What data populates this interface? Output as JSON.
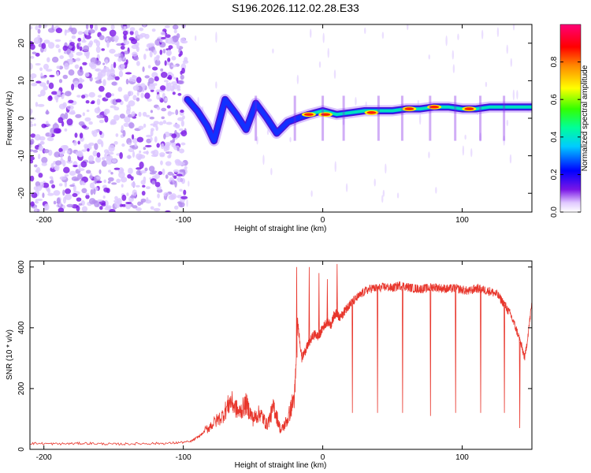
{
  "title": "S196.2026.112.02.28.E33",
  "chart_data": [
    {
      "type": "heatmap",
      "name": "spectrogram",
      "xlabel": "Height of straight line (km)",
      "ylabel": "Frequency (Hz)",
      "xlim": [
        -210,
        150
      ],
      "ylim": [
        -25,
        25
      ],
      "xticks": [
        -200,
        -100,
        0,
        100
      ],
      "yticks": [
        -20,
        -10,
        0,
        10,
        20
      ],
      "ridge": [
        {
          "x": -97,
          "y": 5
        },
        {
          "x": -90,
          "y": 2
        },
        {
          "x": -83,
          "y": -2
        },
        {
          "x": -78,
          "y": -6
        },
        {
          "x": -70,
          "y": 5
        },
        {
          "x": -62,
          "y": 1
        },
        {
          "x": -55,
          "y": -3
        },
        {
          "x": -48,
          "y": 4
        },
        {
          "x": -40,
          "y": 0
        },
        {
          "x": -33,
          "y": -4
        },
        {
          "x": -25,
          "y": -1
        },
        {
          "x": -18,
          "y": 0
        },
        {
          "x": -10,
          "y": 1
        },
        {
          "x": 0,
          "y": 2
        },
        {
          "x": 10,
          "y": 1
        },
        {
          "x": 20,
          "y": 1.5
        },
        {
          "x": 30,
          "y": 2
        },
        {
          "x": 40,
          "y": 2
        },
        {
          "x": 50,
          "y": 2
        },
        {
          "x": 60,
          "y": 2.5
        },
        {
          "x": 70,
          "y": 2.5
        },
        {
          "x": 80,
          "y": 3
        },
        {
          "x": 90,
          "y": 3
        },
        {
          "x": 100,
          "y": 2.5
        },
        {
          "x": 110,
          "y": 2.5
        },
        {
          "x": 120,
          "y": 3
        },
        {
          "x": 130,
          "y": 3
        },
        {
          "x": 140,
          "y": 3
        },
        {
          "x": 150,
          "y": 3
        }
      ],
      "noise_region": [
        -210,
        -98
      ],
      "colorbar": {
        "label": "Normalized spectral amplitude",
        "range": [
          0,
          1
        ],
        "ticks": [
          "0.0",
          "0.2",
          "0.4",
          "0.6",
          "0.8"
        ]
      }
    },
    {
      "type": "line",
      "name": "snr",
      "xlabel": "Height of straight line (km)",
      "ylabel": "SNR (10 * v/v)",
      "xlim": [
        -210,
        150
      ],
      "ylim": [
        0,
        620
      ],
      "xticks": [
        -200,
        -100,
        0,
        100
      ],
      "yticks": [
        0,
        200,
        400,
        600
      ],
      "color": "#e8362c",
      "series": [
        {
          "name": "SNR",
          "x": [
            -210,
            -190,
            -170,
            -150,
            -130,
            -110,
            -95,
            -88,
            -80,
            -72,
            -66,
            -60,
            -55,
            -50,
            -45,
            -40,
            -35,
            -30,
            -25,
            -20,
            -18,
            -15,
            -12,
            -10,
            -6,
            -3,
            0,
            3,
            6,
            8,
            10,
            12,
            15,
            18,
            20,
            25,
            30,
            35,
            40,
            45,
            50,
            55,
            60,
            65,
            70,
            75,
            80,
            85,
            90,
            95,
            100,
            105,
            110,
            115,
            120,
            125,
            130,
            135,
            140,
            145,
            150
          ],
          "y": [
            20,
            18,
            20,
            17,
            19,
            20,
            25,
            45,
            80,
            110,
            160,
            120,
            150,
            100,
            120,
            80,
            140,
            60,
            100,
            180,
            420,
            300,
            330,
            350,
            380,
            370,
            400,
            420,
            410,
            440,
            450,
            430,
            450,
            470,
            480,
            500,
            520,
            530,
            530,
            535,
            530,
            540,
            535,
            530,
            528,
            530,
            535,
            530,
            528,
            530,
            525,
            520,
            530,
            525,
            520,
            510,
            480,
            440,
            380,
            300,
            480
          ]
        }
      ],
      "dropouts": [
        {
          "x": 21,
          "y": 120
        },
        {
          "x": 39,
          "y": 120
        },
        {
          "x": 57,
          "y": 120
        },
        {
          "x": 77,
          "y": 110
        },
        {
          "x": 95,
          "y": 120
        },
        {
          "x": 113,
          "y": 120
        },
        {
          "x": 130,
          "y": 120
        },
        {
          "x": 141,
          "y": 70
        }
      ],
      "spikes": [
        {
          "x": -19,
          "y": 600
        },
        {
          "x": -10,
          "y": 600
        },
        {
          "x": -3,
          "y": 580
        },
        {
          "x": 3,
          "y": 560
        },
        {
          "x": 10,
          "y": 610
        }
      ]
    }
  ]
}
